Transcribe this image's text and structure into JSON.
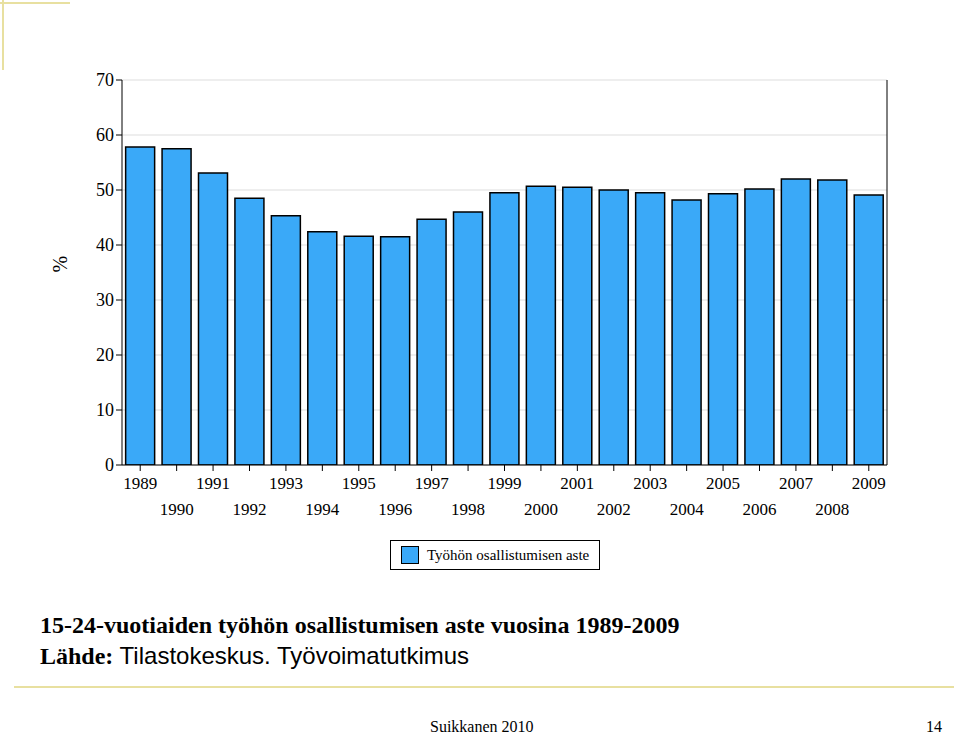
{
  "chart_data": {
    "type": "bar",
    "title": "15-24-vuotiaiden työhön osallistumisen aste vuosina 1989-2009",
    "subtitle": "Lähde: Tilastokeskus. Työvoimatutkimus",
    "annotations": [
      "Suikkanen 2010",
      "14"
    ],
    "y_label": "%",
    "categories": [
      "1989",
      "1990",
      "1991",
      "1992",
      "1993",
      "1994",
      "1995",
      "1996",
      "1997",
      "1998",
      "1999",
      "2000",
      "2001",
      "2002",
      "2003",
      "2004",
      "2005",
      "2006",
      "2007",
      "2008",
      "2009"
    ],
    "series": [
      {
        "name": "Työhön osallistumisen aste",
        "color": "#3aa9f8",
        "values": [
          57.8,
          57.5,
          53.1,
          48.5,
          45.3,
          42.4,
          41.6,
          41.5,
          44.7,
          46.0,
          49.5,
          50.7,
          50.5,
          50.0,
          49.5,
          48.2,
          49.3,
          50.2,
          52.0,
          51.8,
          49.1
        ]
      }
    ],
    "ylim": [
      0,
      70
    ],
    "yticks": [
      0,
      10,
      20,
      30,
      40,
      50,
      60,
      70
    ],
    "grid": true,
    "legend": "bottom"
  }
}
